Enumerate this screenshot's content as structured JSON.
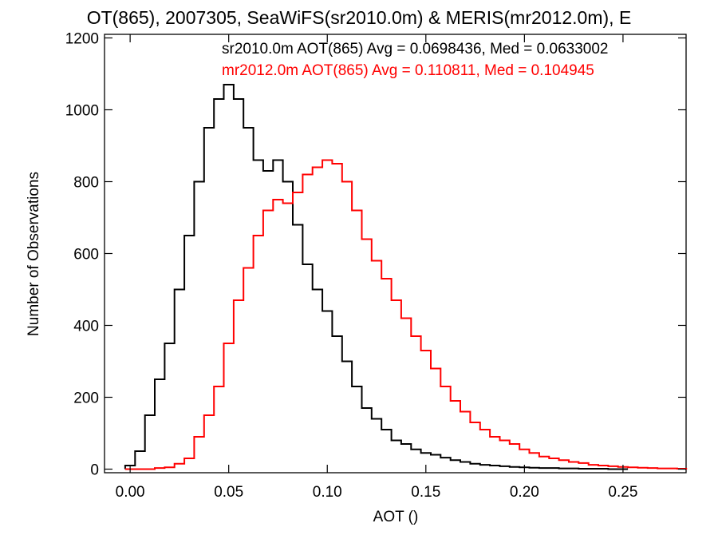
{
  "chart_data": {
    "type": "line",
    "title": "OT(865), 2007305, SeaWiFS(sr2010.0m) & MERIS(mr2012.0m), E",
    "xlabel": "AOT ()",
    "ylabel": "Number of Observations",
    "xlim": [
      -0.013,
      0.282
    ],
    "ylim": [
      -10,
      1210
    ],
    "x_ticks": [
      0.0,
      0.05,
      0.1,
      0.15,
      0.2,
      0.25
    ],
    "x_tick_labels": [
      "0.00",
      "0.05",
      "0.10",
      "0.15",
      "0.20",
      "0.25"
    ],
    "y_ticks": [
      0,
      200,
      400,
      600,
      800,
      1000,
      1200
    ],
    "y_tick_labels": [
      "0",
      "200",
      "400",
      "600",
      "800",
      "1000",
      "1200"
    ],
    "grid": false,
    "legend": "top-right",
    "annotations": [
      {
        "text": "sr2010.0m AOT(865) Avg = 0.0698436, Med = 0.0633002",
        "color": "#000000"
      },
      {
        "text": "mr2012.0m AOT(865) Avg = 0.110811, Med = 0.104945",
        "color": "#ff0000"
      }
    ],
    "series": [
      {
        "color": "#000000",
        "x": [
          0.0,
          0.005,
          0.01,
          0.015,
          0.02,
          0.025,
          0.03,
          0.035,
          0.04,
          0.045,
          0.05,
          0.055,
          0.06,
          0.065,
          0.07,
          0.075,
          0.08,
          0.085,
          0.09,
          0.095,
          0.1,
          0.105,
          0.11,
          0.115,
          0.12,
          0.125,
          0.13,
          0.135,
          0.14,
          0.145,
          0.15,
          0.155,
          0.16,
          0.165,
          0.17,
          0.175,
          0.18,
          0.185,
          0.19,
          0.195,
          0.2,
          0.205,
          0.21,
          0.215,
          0.22,
          0.225,
          0.23,
          0.235,
          0.24,
          0.245,
          0.25
        ],
        "values": [
          10,
          50,
          150,
          250,
          350,
          500,
          650,
          800,
          950,
          1030,
          1070,
          1030,
          950,
          860,
          830,
          860,
          800,
          680,
          570,
          500,
          440,
          370,
          300,
          230,
          170,
          140,
          110,
          80,
          70,
          55,
          45,
          40,
          32,
          25,
          20,
          15,
          12,
          10,
          8,
          6,
          5,
          4,
          3,
          3,
          2,
          2,
          1,
          1,
          1,
          0,
          0
        ]
      },
      {
        "color": "#ff0000",
        "x": [
          0.0,
          0.005,
          0.01,
          0.015,
          0.02,
          0.025,
          0.03,
          0.035,
          0.04,
          0.045,
          0.05,
          0.055,
          0.06,
          0.065,
          0.07,
          0.075,
          0.08,
          0.085,
          0.09,
          0.095,
          0.1,
          0.105,
          0.11,
          0.115,
          0.12,
          0.125,
          0.13,
          0.135,
          0.14,
          0.145,
          0.15,
          0.155,
          0.16,
          0.165,
          0.17,
          0.175,
          0.18,
          0.185,
          0.19,
          0.195,
          0.2,
          0.205,
          0.21,
          0.215,
          0.22,
          0.225,
          0.23,
          0.235,
          0.24,
          0.245,
          0.25,
          0.255,
          0.26,
          0.265,
          0.27,
          0.275,
          0.28
        ],
        "values": [
          0,
          0,
          0,
          3,
          5,
          15,
          30,
          90,
          150,
          230,
          350,
          470,
          560,
          650,
          720,
          750,
          740,
          770,
          820,
          840,
          860,
          850,
          800,
          720,
          640,
          580,
          530,
          470,
          420,
          370,
          330,
          280,
          230,
          190,
          160,
          130,
          110,
          90,
          80,
          70,
          55,
          45,
          35,
          30,
          25,
          20,
          17,
          12,
          10,
          8,
          6,
          5,
          4,
          3,
          2,
          2,
          1
        ]
      }
    ]
  }
}
